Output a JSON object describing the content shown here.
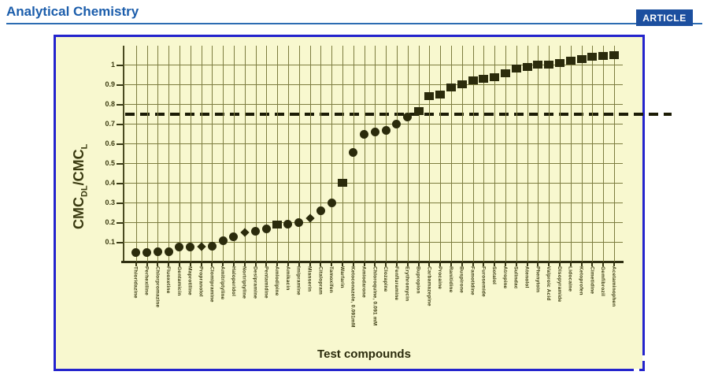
{
  "header": {
    "journal_title": "Analytical Chemistry",
    "article_badge": "ARTICLE"
  },
  "figure": {
    "ylabel_parts": {
      "base1": "CMC",
      "sub1": "DL",
      "base2": "/CMC",
      "sub2": "L"
    },
    "xlabel": "Test compounds"
  },
  "chart_data": {
    "type": "scatter",
    "title": "",
    "xlabel": "Test compounds",
    "ylabel": "CMC_DL/CMC_L",
    "ylim": [
      0,
      1.1
    ],
    "grid": true,
    "yticks": [
      0.1,
      0.2,
      0.3,
      0.4,
      0.5,
      0.6,
      0.7,
      0.8,
      0.9,
      1.0
    ],
    "ytick_labels": [
      "0.1",
      "0.2",
      "0.3",
      "0.4",
      "0.5",
      "0.6",
      "0.7",
      "0.8",
      "0.9",
      "1"
    ],
    "dashed_reference_line_y": 0.75,
    "points": [
      {
        "label": "Thioridazine",
        "value": 0.045,
        "marker": "circle"
      },
      {
        "label": "Perhexiline",
        "value": 0.045,
        "marker": "circle"
      },
      {
        "label": "Chlorpromazine",
        "value": 0.05,
        "marker": "circle"
      },
      {
        "label": "Fluoxetine",
        "value": 0.05,
        "marker": "circle"
      },
      {
        "label": "Gentamicin",
        "value": 0.075,
        "marker": "circle"
      },
      {
        "label": "Maprotiline",
        "value": 0.075,
        "marker": "circle"
      },
      {
        "label": "Propranolol",
        "value": 0.075,
        "marker": "diamond"
      },
      {
        "label": "Clomipramine",
        "value": 0.08,
        "marker": "circle"
      },
      {
        "label": "Amitriptyline",
        "value": 0.105,
        "marker": "circle"
      },
      {
        "label": "Haloperidol",
        "value": 0.125,
        "marker": "circle"
      },
      {
        "label": "Nortriptyline",
        "value": 0.15,
        "marker": "diamond"
      },
      {
        "label": "Desipramine",
        "value": 0.155,
        "marker": "circle"
      },
      {
        "label": "Pentamidine",
        "value": 0.165,
        "marker": "circle"
      },
      {
        "label": "Amlodipine",
        "value": 0.19,
        "marker": "square"
      },
      {
        "label": "Amikacin",
        "value": 0.19,
        "marker": "circle"
      },
      {
        "label": "Imipramine",
        "value": 0.2,
        "marker": "circle"
      },
      {
        "label": "Mianserin",
        "value": 0.22,
        "marker": "diamond"
      },
      {
        "label": "Citalopram",
        "value": 0.26,
        "marker": "circle"
      },
      {
        "label": "Tamoxifen",
        "value": 0.3,
        "marker": "circle"
      },
      {
        "label": "Warfarin",
        "value": 0.4,
        "marker": "square"
      },
      {
        "label": "Ketoconazole, 0.091mM",
        "value": 0.555,
        "marker": "circle"
      },
      {
        "label": "Amiodarone",
        "value": 0.645,
        "marker": "circle"
      },
      {
        "label": "Chloroquine, 0.091 mM",
        "value": 0.66,
        "marker": "circle"
      },
      {
        "label": "Clozapine",
        "value": 0.665,
        "marker": "circle"
      },
      {
        "label": "Fenfluramine",
        "value": 0.7,
        "marker": "circle"
      },
      {
        "label": "Erythromycin",
        "value": 0.735,
        "marker": "circle"
      },
      {
        "label": "Bupropion",
        "value": 0.765,
        "marker": "square"
      },
      {
        "label": "Carbamazepine",
        "value": 0.84,
        "marker": "square"
      },
      {
        "label": "Procaine",
        "value": 0.85,
        "marker": "square"
      },
      {
        "label": "Ranitidine",
        "value": 0.885,
        "marker": "square"
      },
      {
        "label": "Buspirone",
        "value": 0.9,
        "marker": "square"
      },
      {
        "label": "Famotidine",
        "value": 0.92,
        "marker": "square"
      },
      {
        "label": "Furosemide",
        "value": 0.93,
        "marker": "square"
      },
      {
        "label": "Sotalol",
        "value": 0.935,
        "marker": "square"
      },
      {
        "label": "Atropine",
        "value": 0.955,
        "marker": "square"
      },
      {
        "label": "Sulindac",
        "value": 0.98,
        "marker": "square"
      },
      {
        "label": "Atenolol",
        "value": 0.99,
        "marker": "square"
      },
      {
        "label": "Phenytoin",
        "value": 1.0,
        "marker": "square"
      },
      {
        "label": "Valproic Acid",
        "value": 1.0,
        "marker": "square"
      },
      {
        "label": "Disopyramide",
        "value": 1.01,
        "marker": "square"
      },
      {
        "label": "Lidocaine",
        "value": 1.02,
        "marker": "square"
      },
      {
        "label": "Ketoprofen",
        "value": 1.03,
        "marker": "square"
      },
      {
        "label": "Cimetidine",
        "value": 1.04,
        "marker": "square"
      },
      {
        "label": "Gemfibrozil",
        "value": 1.045,
        "marker": "square"
      },
      {
        "label": "Acetaminophen",
        "value": 1.05,
        "marker": "square"
      }
    ]
  }
}
